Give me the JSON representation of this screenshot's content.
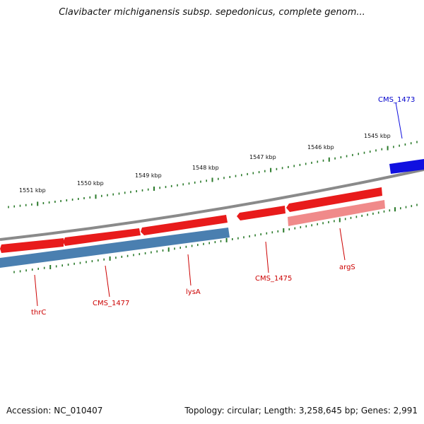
{
  "title": "Clavibacter michiganensis subsp. sepedonicus, complete genom...",
  "footer": {
    "accession": "Accession: NC_010407",
    "summary": "Topology: circular; Length: 3,258,645 bp; Genes: 2,991"
  },
  "colors": {
    "backbone": "#808080",
    "forward_cds": "#ee1c1c",
    "forward_cds_light": "#f08a8a",
    "reverse_cds": "#4a7fb0",
    "other_strand_gene": "#1010e0",
    "tick": "#2a7a2a",
    "label_red": "#cc0000",
    "label_blue": "#0000cc"
  },
  "scale_labels": [
    "1551 kbp",
    "1550 kbp",
    "1549 kbp",
    "1548 kbp",
    "1547 kbp",
    "1546 kbp",
    "1545 kbp"
  ],
  "gene_labels": [
    {
      "name": "CMS_1473",
      "color": "blue"
    },
    {
      "name": "argS",
      "color": "red"
    },
    {
      "name": "CMS_1475",
      "color": "red"
    },
    {
      "name": "lysA",
      "color": "red"
    },
    {
      "name": "CMS_1477",
      "color": "red"
    },
    {
      "name": "thrC",
      "color": "red"
    }
  ]
}
